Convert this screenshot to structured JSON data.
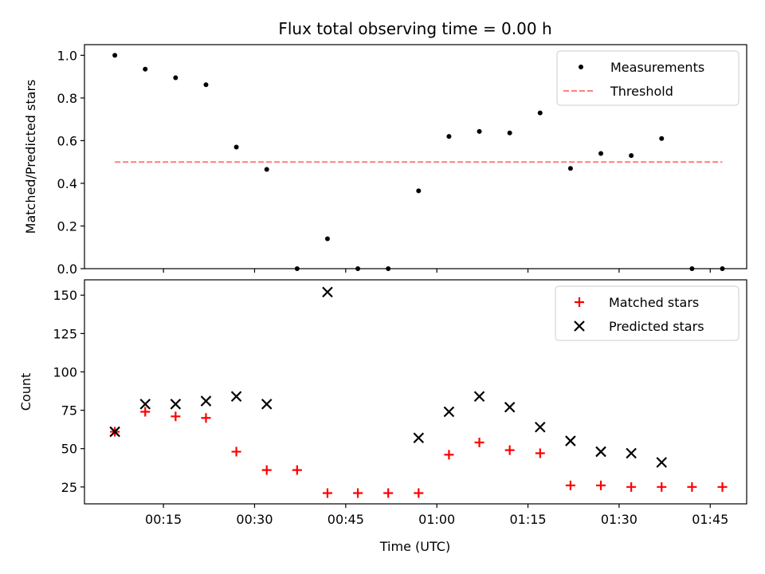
{
  "figure": {
    "title": "Flux total observing time = 0.00 h",
    "xlabel": "Time (UTC)",
    "colors": {
      "measurements": "#000000",
      "threshold": "#ff7f7f",
      "matched": "#ff0000",
      "predicted": "#000000"
    }
  },
  "chart_data": [
    {
      "type": "scatter",
      "title": "Flux total observing time = 0.00 h",
      "xlabel": "",
      "ylabel": "Matched/Predicted stars",
      "xlim": [
        "00:02",
        "01:51"
      ],
      "ylim": [
        0,
        1.05
      ],
      "x_ticks": [
        "00:15",
        "00:30",
        "00:45",
        "01:00",
        "01:15",
        "01:30",
        "01:45"
      ],
      "y_ticks": [
        "0.0",
        "0.2",
        "0.4",
        "0.6",
        "0.8",
        "1.0"
      ],
      "legend_position": "top-right",
      "series": [
        {
          "name": "Measurements",
          "marker": "dot",
          "color": "#000000",
          "x": [
            "00:07",
            "00:12",
            "00:17",
            "00:22",
            "00:27",
            "00:32",
            "00:37",
            "00:42",
            "00:47",
            "00:52",
            "00:57",
            "01:02",
            "01:07",
            "01:12",
            "01:17",
            "01:22",
            "01:27",
            "01:32",
            "01:37",
            "01:42",
            "01:47"
          ],
          "y": [
            1.0,
            0.935,
            0.895,
            0.862,
            0.57,
            0.465,
            0.0,
            0.14,
            0.0,
            0.0,
            0.365,
            0.62,
            0.643,
            0.636,
            0.73,
            0.47,
            0.54,
            0.53,
            0.61,
            0.0,
            0.0
          ]
        },
        {
          "name": "Threshold",
          "marker": "dashed-line",
          "color": "#ff7f7f",
          "x": [
            "00:07",
            "01:47"
          ],
          "y": [
            0.5,
            0.5
          ]
        }
      ]
    },
    {
      "type": "scatter",
      "title": "",
      "xlabel": "Time (UTC)",
      "ylabel": "Count",
      "xlim": [
        "00:02",
        "01:51"
      ],
      "ylim": [
        14,
        160
      ],
      "x_ticks": [
        "00:15",
        "00:30",
        "00:45",
        "01:00",
        "01:15",
        "01:30",
        "01:45"
      ],
      "y_ticks": [
        "25",
        "50",
        "75",
        "100",
        "125",
        "150"
      ],
      "legend_position": "top-right",
      "series": [
        {
          "name": "Matched stars",
          "marker": "plus",
          "color": "#ff0000",
          "x": [
            "00:07",
            "00:12",
            "00:17",
            "00:22",
            "00:27",
            "00:32",
            "00:37",
            "00:42",
            "00:47",
            "00:52",
            "00:57",
            "01:02",
            "01:07",
            "01:12",
            "01:17",
            "01:22",
            "01:27",
            "01:32",
            "01:37",
            "01:42",
            "01:47"
          ],
          "y": [
            61,
            74,
            71,
            70,
            48,
            36,
            36,
            21,
            21,
            21,
            21,
            46,
            54,
            49,
            47,
            26,
            26,
            25,
            25,
            25,
            25
          ]
        },
        {
          "name": "Predicted stars",
          "marker": "x",
          "color": "#000000",
          "x": [
            "00:07",
            "00:12",
            "00:17",
            "00:22",
            "00:27",
            "00:32",
            "00:42",
            "00:57",
            "01:02",
            "01:07",
            "01:12",
            "01:17",
            "01:22",
            "01:27",
            "01:32",
            "01:37"
          ],
          "y": [
            61,
            79,
            79,
            81,
            84,
            79,
            152,
            57,
            74,
            84,
            77,
            64,
            55,
            48,
            47,
            41
          ]
        }
      ]
    }
  ]
}
